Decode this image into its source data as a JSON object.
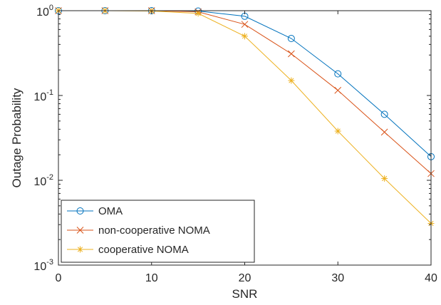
{
  "chart_data": {
    "type": "line",
    "title": "",
    "xlabel": "SNR",
    "ylabel": "Outage Probability",
    "x": [
      0,
      5,
      10,
      15,
      20,
      25,
      30,
      35,
      40
    ],
    "xlim": [
      0,
      40
    ],
    "xticks": [
      0,
      10,
      20,
      30,
      40
    ],
    "ylim": [
      0.001,
      1
    ],
    "yscale": "log",
    "yticks": [
      {
        "value": 0.001,
        "base": "10",
        "exp": "-3"
      },
      {
        "value": 0.01,
        "base": "10",
        "exp": "-2"
      },
      {
        "value": 0.1,
        "base": "10",
        "exp": "-1"
      },
      {
        "value": 1,
        "base": "10",
        "exp": "0"
      }
    ],
    "grid": false,
    "legend_position": "bottom-left",
    "series": [
      {
        "name": "OMA",
        "color": "#0072BD",
        "marker": "circle",
        "values": [
          1.0,
          1.0,
          1.0,
          0.99,
          0.86,
          0.47,
          0.18,
          0.06,
          0.019
        ]
      },
      {
        "name": "non-cooperative NOMA",
        "color": "#D95319",
        "marker": "x",
        "values": [
          1.0,
          1.0,
          1.0,
          0.97,
          0.69,
          0.31,
          0.115,
          0.037,
          0.012
        ]
      },
      {
        "name": "cooperative NOMA",
        "color": "#EDB120",
        "marker": "star",
        "values": [
          1.0,
          1.0,
          0.99,
          0.93,
          0.5,
          0.15,
          0.038,
          0.0105,
          0.0031
        ]
      }
    ]
  }
}
